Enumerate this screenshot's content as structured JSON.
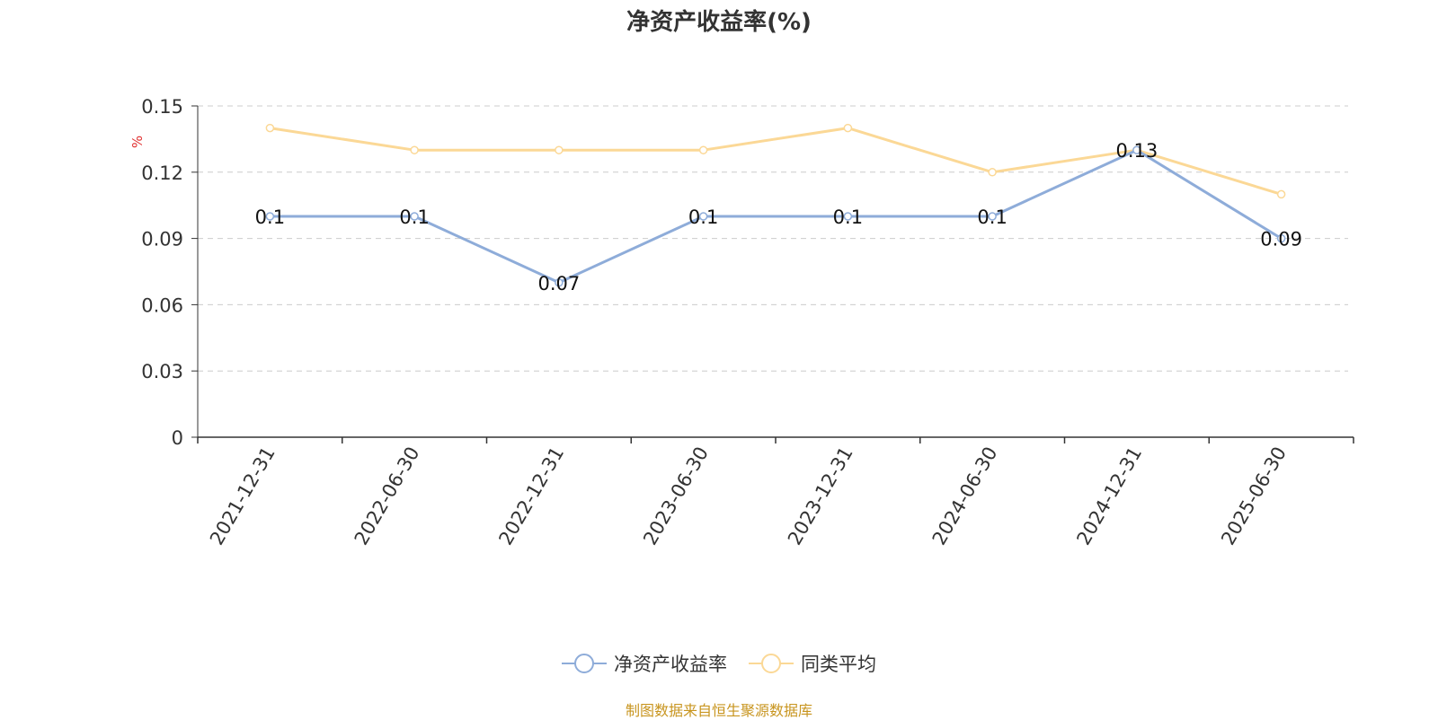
{
  "chart_data": {
    "type": "line",
    "title": "净资产收益率(%)",
    "ylabel": "%",
    "xlabel": "",
    "ylim": [
      0,
      0.15
    ],
    "y_ticks": [
      "0",
      "0.03",
      "0.06",
      "0.09",
      "0.12",
      "0.15"
    ],
    "categories": [
      "2021-12-31",
      "2022-06-30",
      "2022-12-31",
      "2023-06-30",
      "2023-12-31",
      "2024-06-30",
      "2024-12-31",
      "2025-06-30"
    ],
    "grid": true,
    "legend_position": "bottom-center",
    "series": [
      {
        "name": "净资产收益率",
        "values": [
          0.1,
          0.1,
          0.07,
          0.1,
          0.1,
          0.1,
          0.13,
          0.09
        ],
        "labels": [
          "0.1",
          "0.1",
          "0.07",
          "0.1",
          "0.1",
          "0.1",
          "0.13",
          "0.09"
        ],
        "color": "#8eacd9"
      },
      {
        "name": "同类平均",
        "values": [
          0.14,
          0.13,
          0.13,
          0.13,
          0.14,
          0.12,
          0.13,
          0.11
        ],
        "color": "#fbd896"
      }
    ]
  },
  "source_note": "制图数据来自恒生聚源数据库",
  "colors": {
    "axis": "#333333",
    "grid": "#cccccc",
    "ylabel": "#e03030",
    "source": "#c8951f"
  }
}
